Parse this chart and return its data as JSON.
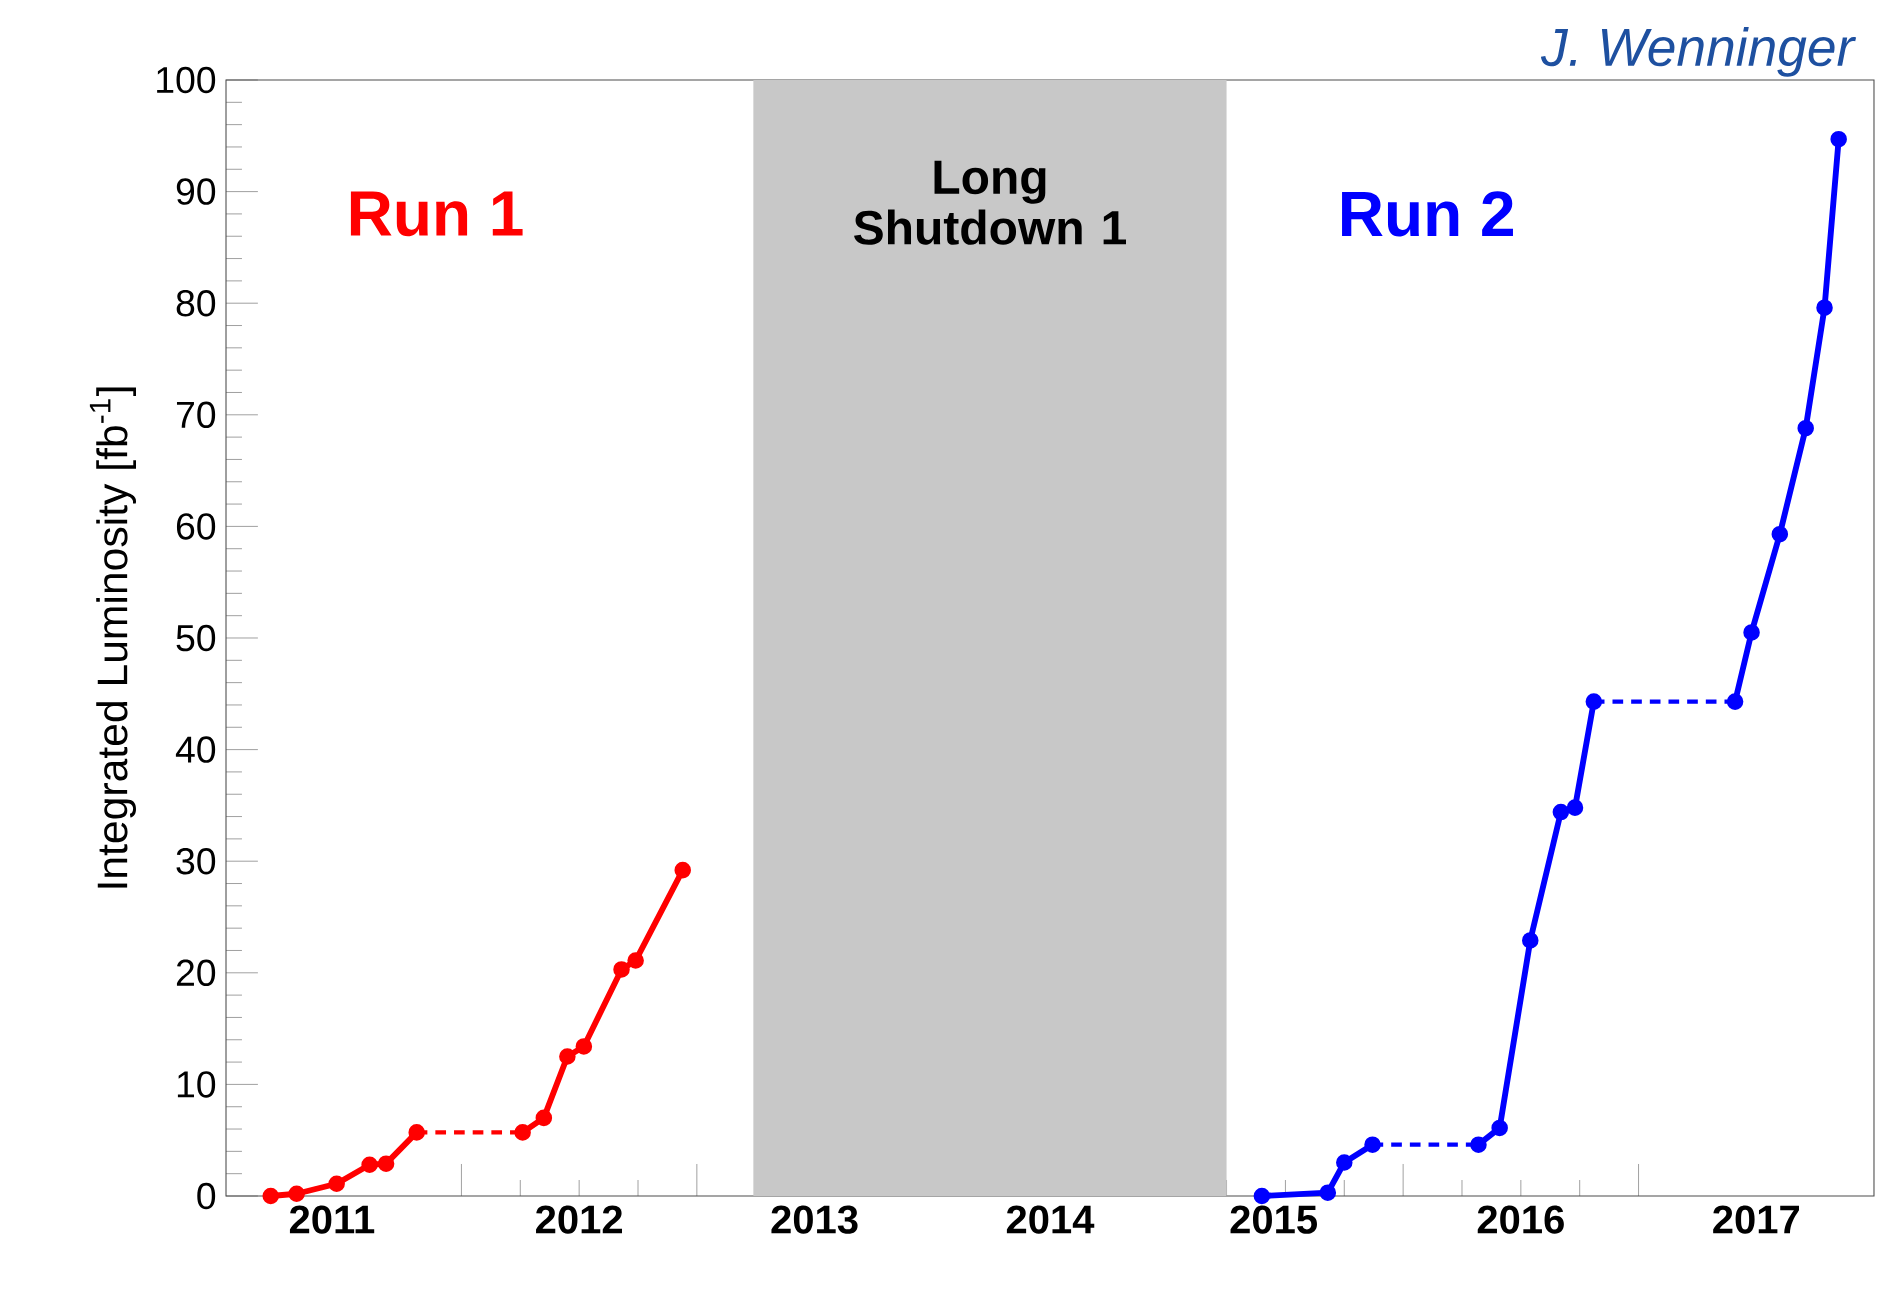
{
  "chart_data": {
    "type": "line",
    "ylabel": "Integrated Luminosity [fb$^{-1}$]",
    "annotations": [
      "J. Wenninger"
    ],
    "xlim": [
      2011,
      2018
    ],
    "ylim": [
      0,
      100
    ],
    "xticks": [
      {
        "value": 2012,
        "label": null
      },
      {
        "value": 2013,
        "label": null
      },
      {
        "value": 2014,
        "label": null
      },
      {
        "value": 2015,
        "label": null
      },
      {
        "value": 2016,
        "label": null
      },
      {
        "value": 2017,
        "label": null
      },
      {
        "value": 2011.45,
        "label": "2011"
      },
      {
        "value": 2012.5,
        "label": "2012"
      },
      {
        "value": 2013.5,
        "label": "2013"
      },
      {
        "value": 2014.5,
        "label": "2014"
      },
      {
        "value": 2015.45,
        "label": "2015"
      },
      {
        "value": 2016.5,
        "label": "2016"
      },
      {
        "value": 2017.5,
        "label": "2017"
      }
    ],
    "yticks": [
      0,
      10,
      20,
      30,
      40,
      50,
      60,
      70,
      80,
      90,
      100
    ],
    "grid": false,
    "bands": [
      {
        "axis": "x",
        "from": 2013.24,
        "to": 2015.25,
        "label": "Long Shutdown 1",
        "color": "#c8c8c8"
      }
    ],
    "series": [
      {
        "name": "Run 1",
        "color": "#ff0000",
        "marker": "circle",
        "line_style": "solid",
        "x": [
          2011.19,
          2011.3,
          2011.47,
          2011.61,
          2011.68,
          2011.81
        ],
        "values": [
          0,
          0.2,
          1.1,
          2.8,
          2.9,
          5.7
        ]
      },
      {
        "color": "#ff0000",
        "line_style": "dotted",
        "x": [
          2011.81,
          2012.26
        ],
        "values": [
          5.7,
          5.7
        ]
      },
      {
        "color": "#ff0000",
        "marker": "circle",
        "line_style": "solid",
        "x": [
          2012.26,
          2012.35,
          2012.45,
          2012.52,
          2012.68,
          2012.74,
          2012.94
        ],
        "values": [
          5.7,
          7,
          12.5,
          13.4,
          20.3,
          21.1,
          29.2
        ]
      },
      {
        "name": "Run 2",
        "color": "#0000ff",
        "marker": "circle",
        "line_style": "solid",
        "x": [
          2015.4,
          2015.68,
          2015.75,
          2015.87
        ],
        "values": [
          0,
          0.3,
          3,
          4.6
        ]
      },
      {
        "color": "#0000ff",
        "line_style": "dotted",
        "x": [
          2015.87,
          2016.32
        ],
        "values": [
          4.6,
          4.6
        ]
      },
      {
        "color": "#0000ff",
        "marker": "circle",
        "line_style": "solid",
        "x": [
          2016.32,
          2016.41,
          2016.54,
          2016.67,
          2016.73,
          2016.81
        ],
        "values": [
          4.6,
          6.1,
          22.9,
          34.4,
          34.8,
          44.3
        ]
      },
      {
        "color": "#0000ff",
        "line_style": "dotted",
        "x": [
          2016.81,
          2017.41
        ],
        "values": [
          44.3,
          44.3
        ]
      },
      {
        "color": "#0000ff",
        "marker": "circle",
        "line_style": "solid",
        "x": [
          2017.41,
          2017.48,
          2017.6,
          2017.71,
          2017.79,
          2017.85
        ],
        "values": [
          44.3,
          50.5,
          59.3,
          68.8,
          79.6,
          94.7
        ]
      }
    ]
  }
}
